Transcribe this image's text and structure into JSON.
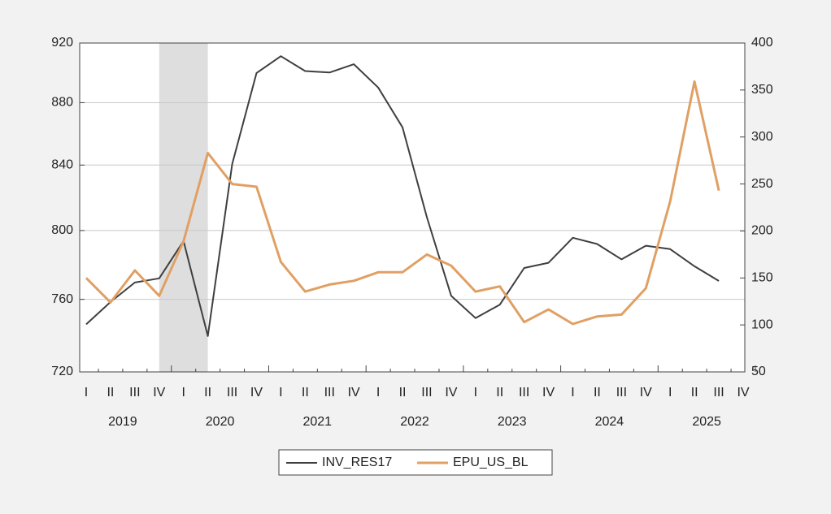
{
  "chart_data": {
    "type": "line",
    "categories": [
      "I",
      "II",
      "III",
      "IV",
      "I",
      "II",
      "III",
      "IV",
      "I",
      "II",
      "III",
      "IV",
      "I",
      "II",
      "III",
      "IV",
      "I",
      "II",
      "III",
      "IV",
      "I",
      "II",
      "III",
      "IV",
      "I",
      "II",
      "III",
      "IV"
    ],
    "years": [
      "2019",
      "2020",
      "2021",
      "2022",
      "2023",
      "2024",
      "2025"
    ],
    "series": [
      {
        "name": "INV_RES17",
        "color": "#3f3f3f",
        "axis": "y",
        "values": [
          746,
          758.5,
          769.6,
          772,
          793.8,
          739.5,
          840.7,
          899.7,
          911,
          901,
          900,
          905.6,
          890,
          864,
          808,
          762,
          749.5,
          757,
          778,
          781,
          795.7,
          792,
          783,
          791,
          789,
          779,
          770.5,
          null
        ]
      },
      {
        "name": "EPU_US_BL",
        "color": "#e0a064",
        "axis": "y2",
        "values": [
          150,
          124,
          158,
          131,
          189,
          283,
          250,
          247,
          167,
          135.5,
          143,
          147,
          156,
          156,
          175,
          163,
          135.5,
          141,
          103,
          116.5,
          101,
          109,
          111,
          139,
          231.5,
          359,
          243,
          null
        ]
      }
    ],
    "shade": {
      "from": 3,
      "to": 5
    },
    "ylim": [
      720,
      920
    ],
    "yticks": [
      720,
      760,
      800,
      840,
      880,
      920
    ],
    "ylog": true,
    "y2lim": [
      50,
      400
    ],
    "y2ticks": [
      50,
      100,
      150,
      200,
      250,
      300,
      350,
      400
    ],
    "grid": true,
    "legend": "bottom"
  }
}
